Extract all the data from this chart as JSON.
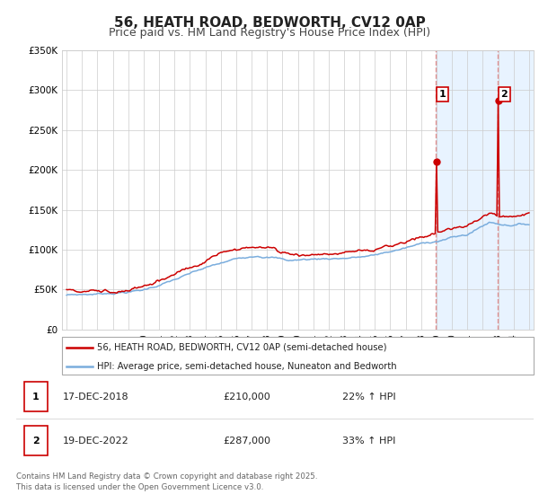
{
  "title": "56, HEATH ROAD, BEDWORTH, CV12 0AP",
  "subtitle": "Price paid vs. HM Land Registry's House Price Index (HPI)",
  "title_fontsize": 11,
  "subtitle_fontsize": 9,
  "background_color": "#ffffff",
  "plot_bg_color": "#ffffff",
  "grid_color": "#cccccc",
  "red_line_color": "#cc0000",
  "blue_line_color": "#7aaddd",
  "highlight_bg_color": "#ddeeff",
  "vline_color": "#dd8888",
  "marker1_year": 2018.96,
  "marker2_year": 2022.96,
  "marker1_value": 210000,
  "marker2_value": 287000,
  "legend_red_label": "56, HEATH ROAD, BEDWORTH, CV12 0AP (semi-detached house)",
  "legend_blue_label": "HPI: Average price, semi-detached house, Nuneaton and Bedworth",
  "table_rows": [
    {
      "num": "1",
      "date": "17-DEC-2018",
      "price": "£210,000",
      "change": "22% ↑ HPI"
    },
    {
      "num": "2",
      "date": "19-DEC-2022",
      "price": "£287,000",
      "change": "33% ↑ HPI"
    }
  ],
  "footnote": "Contains HM Land Registry data © Crown copyright and database right 2025.\nThis data is licensed under the Open Government Licence v3.0.",
  "ylim": [
    0,
    350000
  ],
  "yticks": [
    0,
    50000,
    100000,
    150000,
    200000,
    250000,
    300000,
    350000
  ],
  "ytick_labels": [
    "£0",
    "£50K",
    "£100K",
    "£150K",
    "£200K",
    "£250K",
    "£300K",
    "£350K"
  ],
  "x_start_year": 1995,
  "x_end_year": 2025,
  "num_points": 361
}
